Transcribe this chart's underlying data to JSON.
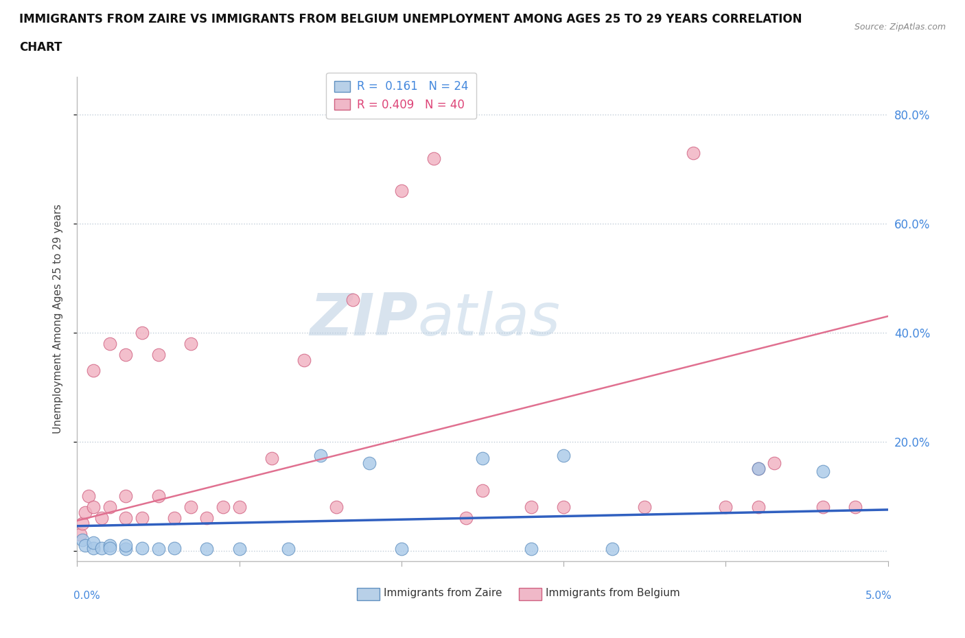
{
  "title_line1": "IMMIGRANTS FROM ZAIRE VS IMMIGRANTS FROM BELGIUM UNEMPLOYMENT AMONG AGES 25 TO 29 YEARS CORRELATION",
  "title_line2": "CHART",
  "source": "Source: ZipAtlas.com",
  "ylabel": "Unemployment Among Ages 25 to 29 years",
  "xlim": [
    0.0,
    0.05
  ],
  "ylim": [
    -0.02,
    0.87
  ],
  "yticks": [
    0.0,
    0.2,
    0.4,
    0.6,
    0.8
  ],
  "ytick_labels": [
    "",
    "20.0%",
    "40.0%",
    "60.0%",
    "80.0%"
  ],
  "watermark": "ZIPatlas",
  "watermark_color": "#ccd8e8",
  "background_color": "#ffffff",
  "grid_color": "#c0ccd8",
  "zaire_color": "#a8c8e8",
  "zaire_edge": "#6090c0",
  "belgium_color": "#f0b0c0",
  "belgium_edge": "#d06080",
  "trendline_zaire_color": "#3060c0",
  "trendline_belgium_color": "#e07090",
  "legend_zaire_face": "#b8d0e8",
  "legend_belgium_face": "#f0b8c8",
  "zaire_x": [
    0.0003,
    0.0005,
    0.001,
    0.001,
    0.0015,
    0.002,
    0.002,
    0.003,
    0.003,
    0.004,
    0.005,
    0.006,
    0.008,
    0.01,
    0.013,
    0.015,
    0.018,
    0.02,
    0.025,
    0.028,
    0.03,
    0.033,
    0.042,
    0.046
  ],
  "zaire_y": [
    0.02,
    0.01,
    0.005,
    0.015,
    0.005,
    0.01,
    0.005,
    0.003,
    0.01,
    0.005,
    0.003,
    0.005,
    0.003,
    0.003,
    0.003,
    0.175,
    0.16,
    0.003,
    0.17,
    0.003,
    0.175,
    0.003,
    0.15,
    0.145
  ],
  "belgium_x": [
    0.0002,
    0.0003,
    0.0005,
    0.0007,
    0.001,
    0.001,
    0.0015,
    0.002,
    0.002,
    0.003,
    0.003,
    0.003,
    0.004,
    0.004,
    0.005,
    0.005,
    0.006,
    0.007,
    0.007,
    0.008,
    0.009,
    0.01,
    0.012,
    0.014,
    0.016,
    0.017,
    0.02,
    0.022,
    0.024,
    0.025,
    0.028,
    0.03,
    0.035,
    0.038,
    0.04,
    0.042,
    0.042,
    0.043,
    0.046,
    0.048
  ],
  "belgium_y": [
    0.03,
    0.05,
    0.07,
    0.1,
    0.08,
    0.33,
    0.06,
    0.08,
    0.38,
    0.06,
    0.1,
    0.36,
    0.06,
    0.4,
    0.1,
    0.36,
    0.06,
    0.08,
    0.38,
    0.06,
    0.08,
    0.08,
    0.17,
    0.35,
    0.08,
    0.46,
    0.66,
    0.72,
    0.06,
    0.11,
    0.08,
    0.08,
    0.08,
    0.73,
    0.08,
    0.15,
    0.08,
    0.16,
    0.08,
    0.08
  ],
  "trendline_zaire_x0": 0.0,
  "trendline_zaire_y0": 0.045,
  "trendline_zaire_x1": 0.05,
  "trendline_zaire_y1": 0.075,
  "trendline_belgium_x0": 0.0,
  "trendline_belgium_y0": 0.055,
  "trendline_belgium_x1": 0.05,
  "trendline_belgium_y1": 0.43
}
